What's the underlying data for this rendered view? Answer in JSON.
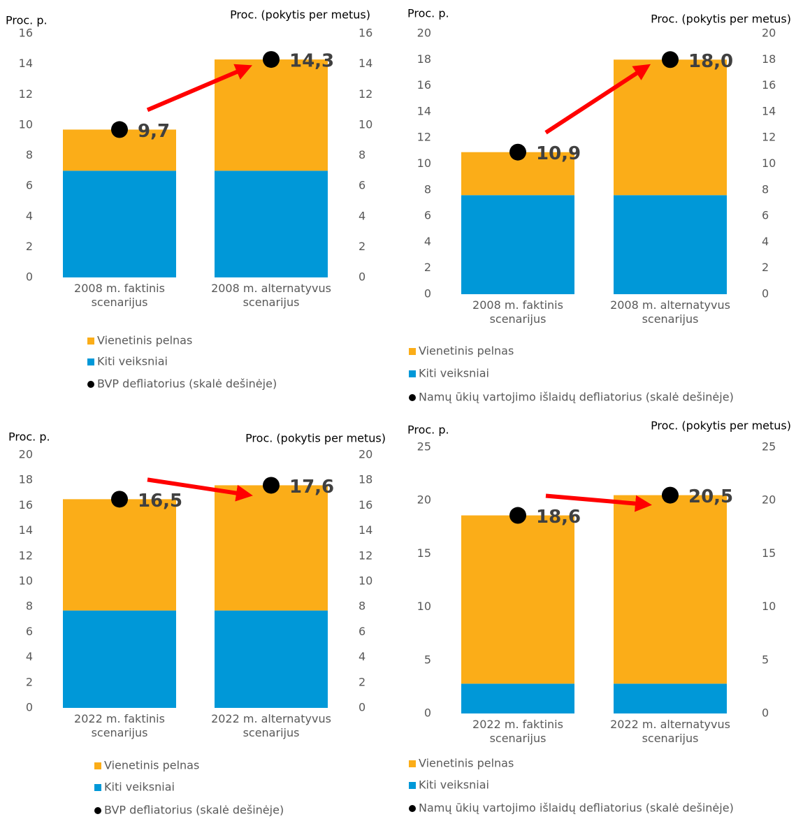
{
  "chart_data": [
    {
      "type": "bar",
      "ylabel": "Proc. p.",
      "y2label": "Proc. (pokytis per metus)",
      "categories": [
        "2008 m. faktinis scenarijus",
        "2008 m. alternatyvus scenarijus"
      ],
      "series": [
        {
          "name": "Kiti veiksniai",
          "color": "#0098d8",
          "values": [
            7.0,
            7.0
          ]
        },
        {
          "name": "Vienetinis pelnas",
          "color": "#fbad18",
          "values": [
            2.7,
            7.3
          ]
        },
        {
          "name": "BVP defliatorius (skalė dešinėje)",
          "color": "#000000",
          "axis": "y2",
          "values": [
            9.7,
            14.3
          ],
          "value_labels": [
            "9,7",
            "14,3"
          ]
        }
      ],
      "ylim": [
        0,
        16
      ],
      "yticks": [
        0,
        2,
        4,
        6,
        8,
        10,
        12,
        14,
        16
      ],
      "y2lim": [
        0,
        16
      ],
      "y2ticks": [
        0,
        2,
        4,
        6,
        8,
        10,
        12,
        14,
        16
      ]
    },
    {
      "type": "bar",
      "ylabel": "Proc. p.",
      "y2label": "Proc. (pokytis per metus)",
      "categories": [
        "2008 m. faktinis scenarijus",
        "2008 m. alternatyvus scenarijus"
      ],
      "series": [
        {
          "name": "Kiti veiksniai",
          "color": "#0098d8",
          "values": [
            7.6,
            7.6
          ]
        },
        {
          "name": "Vienetinis pelnas",
          "color": "#fbad18",
          "values": [
            3.3,
            10.4
          ]
        },
        {
          "name": "Namų ūkių vartojimo išlaidų defliatorius (skalė dešinėje)",
          "color": "#000000",
          "axis": "y2",
          "values": [
            10.9,
            18.0
          ],
          "value_labels": [
            "10,9",
            "18,0"
          ]
        }
      ],
      "ylim": [
        0,
        20
      ],
      "yticks": [
        0,
        2,
        4,
        6,
        8,
        10,
        12,
        14,
        16,
        18,
        20
      ],
      "y2lim": [
        0,
        20
      ],
      "y2ticks": [
        0,
        2,
        4,
        6,
        8,
        10,
        12,
        14,
        16,
        18,
        20
      ]
    },
    {
      "type": "bar",
      "ylabel": "Proc. p.",
      "y2label": "Proc. (pokytis per metus)",
      "categories": [
        "2022 m. faktinis scenarijus",
        "2022 m. alternatyvus scenarijus"
      ],
      "series": [
        {
          "name": "Kiti veiksniai",
          "color": "#0098d8",
          "values": [
            7.7,
            7.7
          ]
        },
        {
          "name": "Vienetinis pelnas",
          "color": "#fbad18",
          "values": [
            8.8,
            9.9
          ]
        },
        {
          "name": "BVP defliatorius (skalė dešinėje)",
          "color": "#000000",
          "axis": "y2",
          "values": [
            16.5,
            17.6
          ],
          "value_labels": [
            "16,5",
            "17,6"
          ]
        }
      ],
      "ylim": [
        0,
        20
      ],
      "yticks": [
        0,
        2,
        4,
        6,
        8,
        10,
        12,
        14,
        16,
        18,
        20
      ],
      "y2lim": [
        0,
        20
      ],
      "y2ticks": [
        0,
        2,
        4,
        6,
        8,
        10,
        12,
        14,
        16,
        18,
        20
      ]
    },
    {
      "type": "bar",
      "ylabel": "Proc. p.",
      "y2label": "Proc. (pokytis per metus)",
      "categories": [
        "2022 m. faktinis scenarijus",
        "2022 m. alternatyvus scenarijus"
      ],
      "series": [
        {
          "name": "Kiti veiksniai",
          "color": "#0098d8",
          "values": [
            2.8,
            2.8
          ]
        },
        {
          "name": "Vienetinis pelnas",
          "color": "#fbad18",
          "values": [
            15.8,
            17.7
          ]
        },
        {
          "name": "Namų ūkių vartojimo išlaidų defliatorius (skalė dešinėje)",
          "color": "#000000",
          "axis": "y2",
          "values": [
            18.6,
            20.5
          ],
          "value_labels": [
            "18,6",
            "20,5"
          ]
        }
      ],
      "ylim": [
        0,
        25
      ],
      "yticks": [
        0,
        5,
        10,
        15,
        20,
        25
      ],
      "y2lim": [
        0,
        25
      ],
      "y2ticks": [
        0,
        5,
        10,
        15,
        20,
        25
      ]
    }
  ]
}
